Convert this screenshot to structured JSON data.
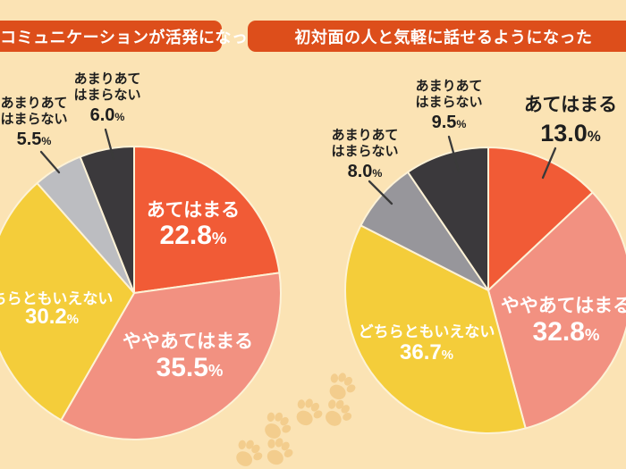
{
  "meta": {
    "percent_sign": "%"
  },
  "style": {
    "background": "#fbe3b4",
    "banner_color": "#dd4e1b",
    "slice_border": "#fdf2d6",
    "paw_color": "#f3cd8d",
    "leader_color": "#3a3a3a",
    "outside_text_color": "#1e1e1e",
    "on_slice_text_color": "#ffffff"
  },
  "chart_data": [
    {
      "type": "pie",
      "title": "家族間のコミュニケーションが活発になった",
      "labels": [
        "あてはまる",
        "ややあてはまる",
        "どちらともいえない",
        "あまりあてはまらない",
        "あまりあてはまらない"
      ],
      "values": [
        22.8,
        35.5,
        30.2,
        5.5,
        6.0
      ],
      "display_values": [
        "22.8",
        "35.5",
        "30.2",
        "5.5",
        "6.0"
      ],
      "colors": [
        "#f15b36",
        "#f29181",
        "#f4cd3a",
        "#bcbdc1",
        "#3b393c"
      ],
      "start_angle_deg": -90,
      "direction": "clockwise"
    },
    {
      "type": "pie",
      "title": "初対面の人と気軽に話せるようになった",
      "labels": [
        "あてはまる",
        "ややあてはまる",
        "どちらともいえない",
        "あまりあてはまらない",
        "あまりあてはまらない"
      ],
      "values": [
        13.0,
        32.8,
        36.7,
        8.0,
        9.5
      ],
      "display_values": [
        "13.0",
        "32.8",
        "36.7",
        "8.0",
        "9.5"
      ],
      "colors": [
        "#f15b36",
        "#f29181",
        "#f4cd3a",
        "#97969b",
        "#3b393c"
      ],
      "start_angle_deg": -90,
      "direction": "clockwise"
    }
  ]
}
